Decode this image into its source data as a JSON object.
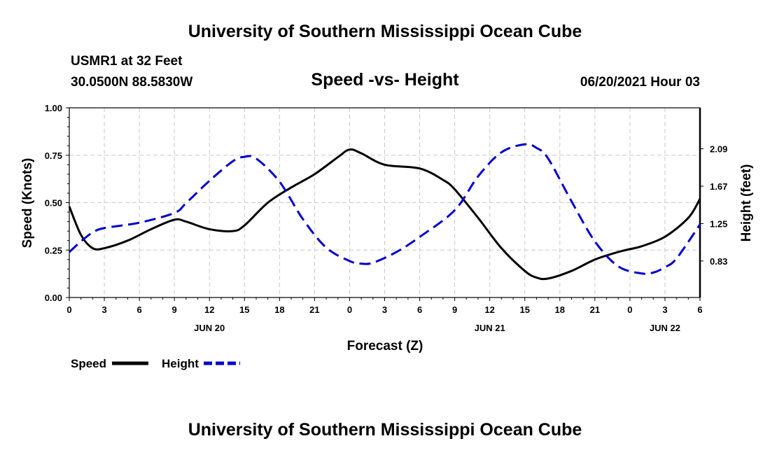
{
  "header": {
    "title": "University of Southern Mississippi Ocean Cube",
    "station": "USMR1 at 32 Feet",
    "coords": "30.0500N  88.5830W",
    "datetime": "06/20/2021 Hour 03"
  },
  "footer": {
    "title": "University of Southern Mississippi Ocean Cube"
  },
  "legend": {
    "speed_label": "Speed",
    "height_label": "Height"
  },
  "colors": {
    "speed": "#000000",
    "height": "#0000cc",
    "grid": "#c8c8c8"
  },
  "chart_data": {
    "type": "line",
    "title": "Speed -vs- Height",
    "xlabel": "Forecast (Z)",
    "ylabel": "Speed (Knots)",
    "y2label": "Height (feet)",
    "x_range": [
      0,
      54
    ],
    "ylim": [
      0,
      1
    ],
    "y2lim": [
      0.42,
      2.55
    ],
    "x_ticks": [
      0,
      3,
      6,
      9,
      12,
      15,
      18,
      21,
      24,
      27,
      30,
      33,
      36,
      39,
      42,
      45,
      48,
      51,
      54
    ],
    "x_tick_labels": [
      "0",
      "3",
      "6",
      "9",
      "12",
      "15",
      "18",
      "21",
      "0",
      "3",
      "6",
      "9",
      "12",
      "15",
      "18",
      "21",
      "0",
      "3",
      "6"
    ],
    "day_labels": [
      {
        "x": 12,
        "label": "JUN 20"
      },
      {
        "x": 36,
        "label": "JUN 21"
      },
      {
        "x": 51,
        "label": "JUN 22"
      }
    ],
    "y_ticks": [
      0,
      0.25,
      0.5,
      0.75,
      1
    ],
    "y_tick_labels": [
      "0.00",
      "0.25",
      "0.50",
      "0.75",
      "1.00"
    ],
    "y2_ticks": [
      0.83,
      1.25,
      1.67,
      2.09
    ],
    "y2_tick_labels": [
      "0.83",
      "1.25",
      "1.67",
      "2.09"
    ],
    "series": [
      {
        "name": "Speed",
        "axis": "left",
        "style": "solid",
        "x": [
          0,
          1,
          2,
          3,
          5,
          7,
          9,
          10,
          12,
          14,
          15,
          17,
          19,
          21,
          23,
          24,
          25,
          27,
          30,
          32,
          33,
          35,
          37,
          39,
          40,
          41,
          43,
          45,
          47,
          48,
          49,
          51,
          53,
          54
        ],
        "values": [
          0.48,
          0.33,
          0.26,
          0.26,
          0.3,
          0.36,
          0.41,
          0.4,
          0.36,
          0.35,
          0.38,
          0.5,
          0.58,
          0.65,
          0.74,
          0.78,
          0.76,
          0.7,
          0.68,
          0.62,
          0.57,
          0.42,
          0.26,
          0.14,
          0.105,
          0.1,
          0.14,
          0.2,
          0.24,
          0.255,
          0.27,
          0.32,
          0.42,
          0.52
        ]
      },
      {
        "name": "Height",
        "axis": "right",
        "style": "dashed",
        "x": [
          0,
          1,
          2,
          3,
          6,
          9,
          10,
          12,
          14,
          15,
          16,
          18,
          20,
          22,
          24,
          25,
          26,
          28,
          30,
          33,
          35,
          37,
          39,
          40,
          41,
          43,
          45,
          47,
          49,
          50,
          51,
          52,
          54
        ],
        "values": [
          0.93,
          1.05,
          1.15,
          1.2,
          1.26,
          1.37,
          1.48,
          1.73,
          1.95,
          2.0,
          1.98,
          1.72,
          1.3,
          0.98,
          0.83,
          0.8,
          0.81,
          0.93,
          1.1,
          1.4,
          1.78,
          2.05,
          2.14,
          2.1,
          1.98,
          1.5,
          1.05,
          0.77,
          0.69,
          0.7,
          0.76,
          0.86,
          1.24
        ]
      }
    ]
  }
}
